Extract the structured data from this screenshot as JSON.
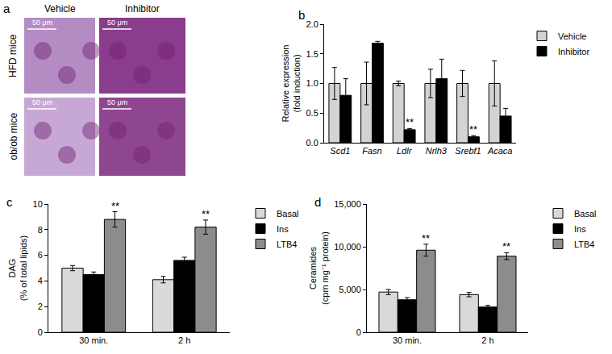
{
  "panel_a": {
    "label": "a",
    "columns": [
      "Vehicle",
      "Inhibitor"
    ],
    "rows": [
      "HFD mice",
      "ob/ob mice"
    ],
    "scale_bar": "50 μm"
  },
  "chart_data": [
    {
      "type": "bar",
      "panel_label": "b",
      "y_label": [
        "Relative expression",
        "(fold induction)"
      ],
      "categories": [
        "Scd1",
        "Fasn",
        "Ldlr",
        "Nrlh3",
        "Srebf1",
        "Acaca"
      ],
      "series": [
        {
          "name": "Vehicle",
          "color": "#d3d3d3",
          "values": [
            1.0,
            1.0,
            1.0,
            1.0,
            1.0,
            1.0
          ],
          "errors": [
            0.27,
            0.36,
            0.04,
            0.24,
            0.22,
            0.38
          ]
        },
        {
          "name": "Inhibitor",
          "color": "#000000",
          "values": [
            0.8,
            1.68,
            0.22,
            1.08,
            0.1,
            0.45
          ],
          "errors": [
            0.28,
            0.03,
            0.02,
            0.33,
            0.02,
            0.13
          ]
        }
      ],
      "ylim": [
        0,
        2.0
      ],
      "yticks": [
        {
          "value": 0,
          "label": "0.0"
        },
        0.5,
        {
          "value": 1,
          "label": "1.0"
        },
        1.5,
        {
          "value": 2,
          "label": "2.0"
        }
      ],
      "grid": false,
      "legend": "top right",
      "annotations": [
        {
          "text": "**",
          "category": "Ldlr",
          "series": "Inhibitor"
        },
        {
          "text": "**",
          "category": "Srebf1",
          "series": "Inhibitor"
        }
      ]
    },
    {
      "type": "bar",
      "panel_label": "c",
      "y_label": [
        "DAG",
        "(% of total lipids)"
      ],
      "categories": [
        "30 min.",
        "2 h"
      ],
      "series": [
        {
          "name": "Basal",
          "color": "#d9d9d9",
          "values": [
            5.0,
            4.1
          ],
          "errors": [
            0.2,
            0.25
          ]
        },
        {
          "name": "Ins",
          "color": "#000000",
          "values": [
            4.5,
            5.6
          ],
          "errors": [
            0.2,
            0.25
          ]
        },
        {
          "name": "LTB4",
          "color": "#8c8c8c",
          "values": [
            8.8,
            8.2
          ],
          "errors": [
            0.6,
            0.55
          ]
        }
      ],
      "ylim": [
        0,
        10
      ],
      "yticks": [
        0,
        2,
        4,
        6,
        8,
        10
      ],
      "grid": false,
      "legend": "top right",
      "annotations": [
        {
          "text": "**",
          "category": "30 min.",
          "series": "LTB4"
        },
        {
          "text": "**",
          "category": "2 h",
          "series": "LTB4"
        }
      ]
    },
    {
      "type": "bar",
      "panel_label": "d",
      "y_label": [
        "Ceramides",
        "(cpm mg⁻¹ protein)"
      ],
      "categories": [
        "30 min.",
        "2 h"
      ],
      "series": [
        {
          "name": "Basal",
          "color": "#d9d9d9",
          "values": [
            4700,
            4400
          ],
          "errors": [
            300,
            250
          ]
        },
        {
          "name": "Ins",
          "color": "#000000",
          "values": [
            3800,
            2950
          ],
          "errors": [
            250,
            200
          ]
        },
        {
          "name": "LTB4",
          "color": "#8c8c8c",
          "values": [
            9600,
            8900
          ],
          "errors": [
            700,
            400
          ]
        }
      ],
      "ylim": [
        0,
        15000
      ],
      "yticks": [
        0,
        {
          "value": 5000,
          "label": "5,000"
        },
        {
          "value": 10000,
          "label": "10,000"
        },
        {
          "value": 15000,
          "label": "15,000"
        }
      ],
      "grid": false,
      "legend": "top right",
      "annotations": [
        {
          "text": "**",
          "category": "30 min.",
          "series": "LTB4"
        },
        {
          "text": "**",
          "category": "2 h",
          "series": "LTB4"
        }
      ]
    }
  ]
}
